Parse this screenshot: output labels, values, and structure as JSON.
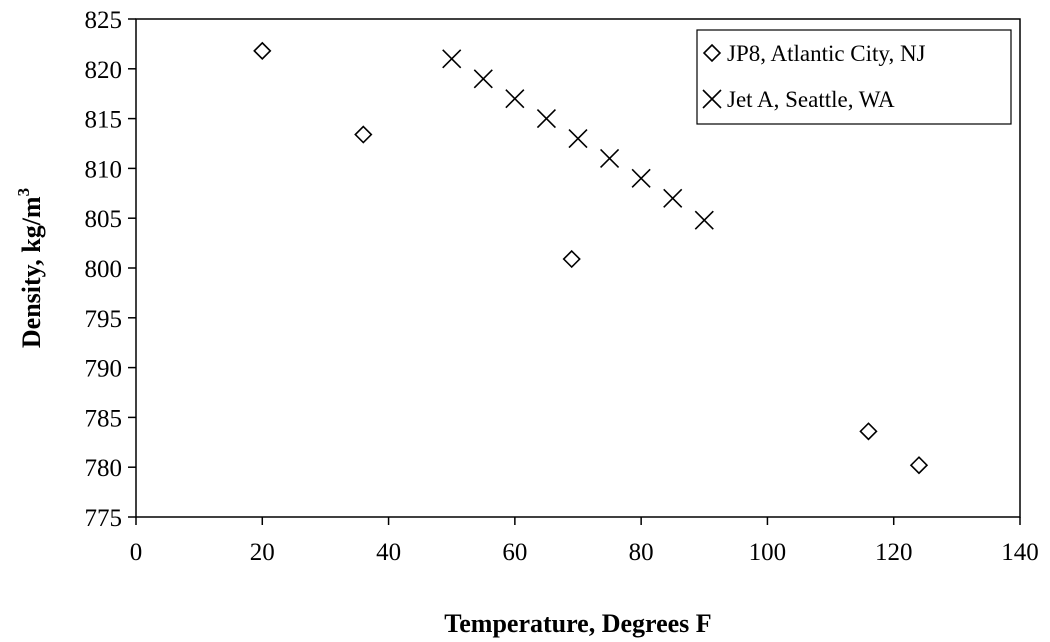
{
  "chart_data": {
    "type": "scatter",
    "xlabel": "Temperature, Degrees F",
    "ylabel": "Density, kg/m",
    "ylabel_superscript": "3",
    "xlim": [
      0,
      140
    ],
    "ylim": [
      775,
      825
    ],
    "x_ticks": [
      "0",
      "20",
      "40",
      "60",
      "80",
      "100",
      "120",
      "140"
    ],
    "y_ticks": [
      "775",
      "780",
      "785",
      "790",
      "795",
      "800",
      "805",
      "810",
      "815",
      "820",
      "825"
    ],
    "grid": false,
    "legend_position": "top-right",
    "series": [
      {
        "name": "JP8, Atlantic City, NJ",
        "marker": "diamond",
        "points": [
          [
            20,
            821.8
          ],
          [
            36,
            813.4
          ],
          [
            69,
            800.9
          ],
          [
            116,
            783.6
          ],
          [
            124,
            780.2
          ]
        ]
      },
      {
        "name": "Jet A, Seattle, WA",
        "marker": "x",
        "points": [
          [
            50,
            821.0
          ],
          [
            55,
            819.0
          ],
          [
            60,
            817.0
          ],
          [
            65,
            815.0
          ],
          [
            70,
            813.0
          ],
          [
            75,
            811.0
          ],
          [
            80,
            809.0
          ],
          [
            85,
            807.0
          ],
          [
            90,
            804.8
          ]
        ]
      }
    ]
  }
}
